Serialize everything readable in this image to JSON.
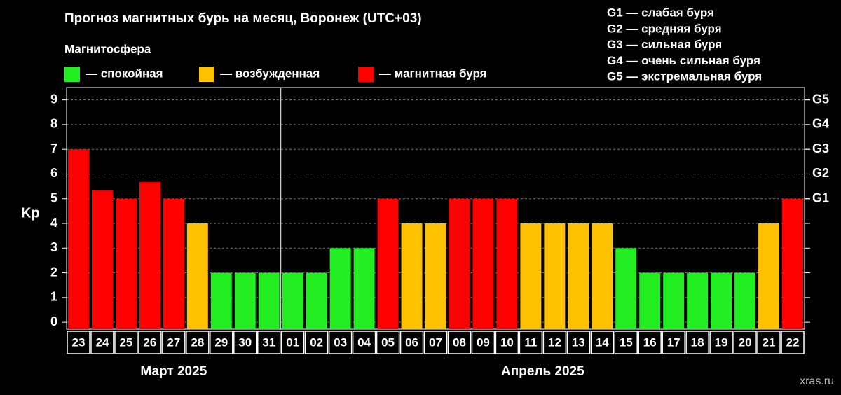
{
  "chart_data": {
    "type": "bar",
    "title": "Прогноз магнитных бурь на месяц, Воронеж (UTC+03)",
    "legend_title": "Магнитосфера",
    "legend": [
      {
        "name": "— спокойная",
        "color": "#22ee22"
      },
      {
        "name": "— возбужденная",
        "color": "#ffc000"
      },
      {
        "name": "— магнитная буря",
        "color": "#ff0000"
      }
    ],
    "storm_levels": [
      "G1 — слабая буря",
      "G2 — средняя буря",
      "G3 — сильная буря",
      "G4 — очень сильная буря",
      "G5 — экстремальная буря"
    ],
    "y_label": "Kp",
    "categories": [
      "23",
      "24",
      "25",
      "26",
      "27",
      "28",
      "29",
      "30",
      "31",
      "01",
      "02",
      "03",
      "04",
      "05",
      "06",
      "07",
      "08",
      "09",
      "10",
      "11",
      "12",
      "13",
      "14",
      "15",
      "16",
      "17",
      "18",
      "19",
      "20",
      "21",
      "22"
    ],
    "month_labels": [
      "Март 2025",
      "Апрель 2025"
    ],
    "values": [
      7,
      5.33,
      5,
      5.67,
      5,
      4,
      2,
      2,
      2,
      2,
      2,
      3,
      3,
      5,
      4,
      4,
      5,
      5,
      5,
      4,
      4,
      4,
      4,
      3,
      2,
      2,
      2,
      2,
      2,
      4,
      5
    ],
    "colors": [
      "#ff0000",
      "#ff0000",
      "#ff0000",
      "#ff0000",
      "#ff0000",
      "#ffc000",
      "#22ee22",
      "#22ee22",
      "#22ee22",
      "#22ee22",
      "#22ee22",
      "#22ee22",
      "#22ee22",
      "#ff0000",
      "#ffc000",
      "#ffc000",
      "#ff0000",
      "#ff0000",
      "#ff0000",
      "#ffc000",
      "#ffc000",
      "#ffc000",
      "#ffc000",
      "#22ee22",
      "#22ee22",
      "#22ee22",
      "#22ee22",
      "#22ee22",
      "#22ee22",
      "#ffc000",
      "#ff0000"
    ],
    "ylim": [
      -0.28,
      9.5
    ],
    "yticks": [
      0,
      1,
      2,
      3,
      4,
      5,
      6,
      7,
      8,
      9
    ],
    "y2lim": [
      -0.28,
      9.5
    ],
    "y2ticks": [
      {
        "value": 5,
        "label": "G1"
      },
      {
        "value": 6,
        "label": "G2"
      },
      {
        "value": 7,
        "label": "G3"
      },
      {
        "value": 8,
        "label": "G4"
      },
      {
        "value": 9,
        "label": "G5"
      }
    ],
    "grid": true,
    "watermark": "xras.ru"
  }
}
